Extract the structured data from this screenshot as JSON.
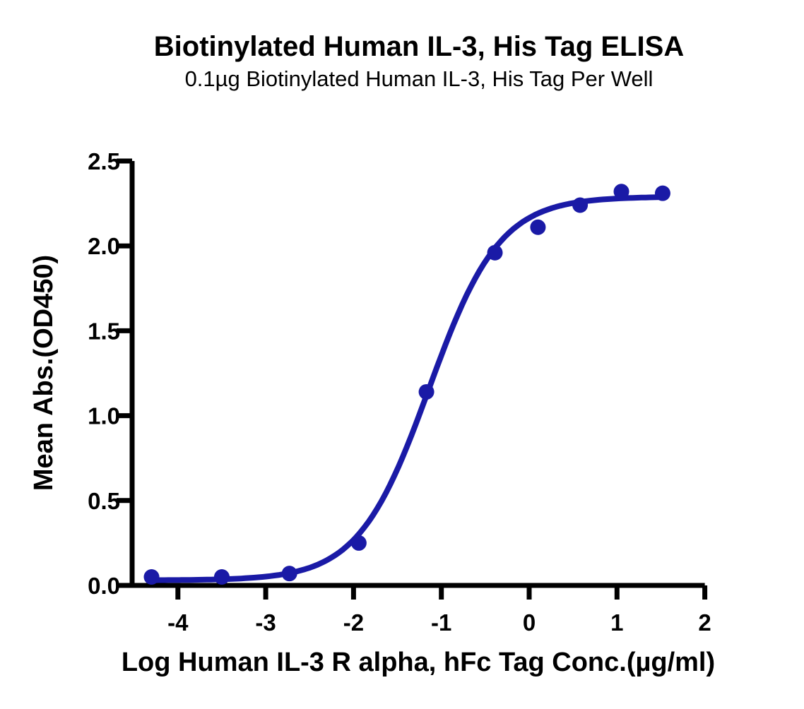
{
  "header": {
    "title": "Biotinylated Human IL-3, His Tag ELISA",
    "subtitle": "0.1µg Biotinylated Human IL-3, His Tag Per Well"
  },
  "colors": {
    "curve": "#1a1aa6",
    "axis": "#000000",
    "text": "#000000",
    "background": "#ffffff"
  },
  "chart_data": {
    "type": "scatter",
    "title": "Biotinylated Human IL-3, His Tag ELISA",
    "subtitle": "0.1µg Biotinylated Human IL-3, His Tag Per Well",
    "xlabel": "Log Human IL-3 R alpha, hFc Tag Conc.(µg/ml)",
    "ylabel": "Mean Abs.(OD450)",
    "xlim": [
      -4.55,
      2.0
    ],
    "ylim": [
      0.0,
      2.5
    ],
    "x_ticks": [
      -4,
      -3,
      -2,
      -1,
      0,
      1,
      2
    ],
    "x_tick_labels": [
      "-4",
      "-3",
      "-2",
      "-1",
      "0",
      "1",
      "2"
    ],
    "y_ticks": [
      0.0,
      0.5,
      1.0,
      1.5,
      2.0,
      2.5
    ],
    "y_tick_labels": [
      "0.0",
      "0.5",
      "1.0",
      "1.5",
      "2.0",
      "2.5"
    ],
    "grid": false,
    "legend": "none",
    "series": [
      {
        "name": "Biotinylated Human IL-3, His Tag",
        "color": "#1a1aa6",
        "marker": "circle",
        "points": [
          [
            -4.3,
            0.05
          ],
          [
            -3.5,
            0.05
          ],
          [
            -2.73,
            0.07
          ],
          [
            -1.94,
            0.25
          ],
          [
            -1.17,
            1.14
          ],
          [
            -0.39,
            1.96
          ],
          [
            0.1,
            2.11
          ],
          [
            0.58,
            2.24
          ],
          [
            1.05,
            2.32
          ],
          [
            1.52,
            2.31
          ]
        ],
        "fit": {
          "model": "4PL",
          "bottom": 0.03,
          "top": 2.29,
          "logEC50": -1.14,
          "hill": 1.08,
          "x_start": -4.3,
          "x_end": 1.52
        }
      }
    ]
  }
}
